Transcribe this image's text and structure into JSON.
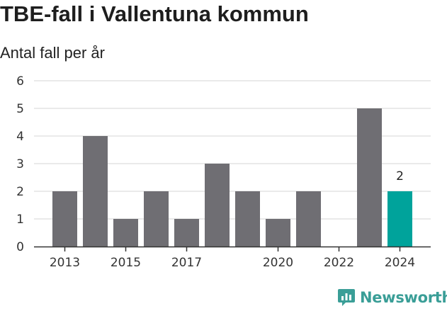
{
  "header": {
    "title": "TBE-fall i Vallentuna kommun",
    "subtitle": "Antal fall per år"
  },
  "chart_data": {
    "type": "bar",
    "title": "TBE-fall i Vallentuna kommun",
    "subtitle": "Antal fall per år",
    "xlabel": "",
    "ylabel": "",
    "categories": [
      "2013",
      "2014",
      "2015",
      "2016",
      "2017",
      "2018",
      "2019",
      "2020",
      "2021",
      "2022",
      "2023",
      "2024"
    ],
    "values": [
      2,
      4,
      1,
      2,
      1,
      3,
      2,
      1,
      2,
      0,
      5,
      2
    ],
    "x_tick_labels": [
      "2013",
      "2015",
      "2017",
      "2020",
      "2022",
      "2024"
    ],
    "y_ticks": [
      0,
      1,
      2,
      3,
      4,
      5,
      6
    ],
    "ylim": [
      0,
      6
    ],
    "grid": true,
    "bar_color": "#6f6e73",
    "highlight_color": "#00a39b",
    "highlight_category": "2024",
    "data_labels": [
      {
        "category": "2024",
        "text": "2"
      }
    ]
  },
  "brand": {
    "name": "Newsworthy",
    "icon": "newsworthy-logo-icon",
    "color": "#3a9e97"
  }
}
